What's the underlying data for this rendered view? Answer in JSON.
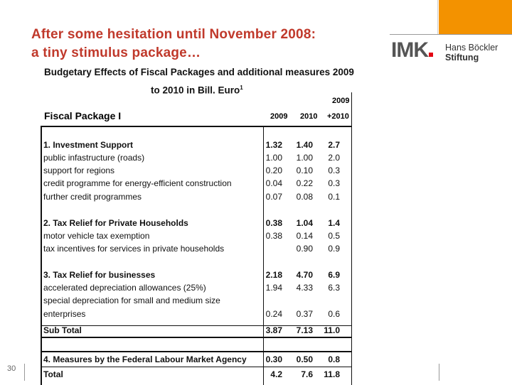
{
  "slide": {
    "title_line1": "After some hesitation until November 2008:",
    "title_line2": "a tiny stimulus package…",
    "number": "30",
    "colors": {
      "title": "#c0392b",
      "accent": "#f39200",
      "imk_red": "#e30613"
    }
  },
  "logos": {
    "imk": "IMK",
    "hbs_line1": "Hans Böckler",
    "hbs_line2": "Stiftung"
  },
  "table": {
    "heading_line1": "Budgetary Effects of Fiscal Packages and additional measures  2009",
    "heading_line2": "to 2010 in Bill. Euro",
    "heading_footnote": "1",
    "package_label": "Fiscal Package I",
    "col_headers": [
      "2009",
      "2010",
      "+2010"
    ],
    "col_header_top": "2009",
    "rows": [
      {
        "label": "1. Investment Support",
        "bold": true,
        "v": [
          "1.32",
          "1.40",
          "2.7"
        ]
      },
      {
        "label": "public infastructure (roads)",
        "bold": false,
        "v": [
          "1.00",
          "1.00",
          "2.0"
        ]
      },
      {
        "label": "support for regions",
        "bold": false,
        "v": [
          "0.20",
          "0.10",
          "0.3"
        ]
      },
      {
        "label": "credit programme for energy-efficient construction",
        "bold": false,
        "v": [
          "0.04",
          "0.22",
          "0.3"
        ]
      },
      {
        "label": "further credit programmes",
        "bold": false,
        "v": [
          "0.07",
          "0.08",
          "0.1"
        ]
      },
      {
        "label": "2. Tax Relief for Private Households",
        "bold": true,
        "v": [
          "0.38",
          "1.04",
          "1.4"
        ]
      },
      {
        "label": "motor vehicle tax exemption",
        "bold": false,
        "v": [
          "0.38",
          "0.14",
          "0.5"
        ]
      },
      {
        "label": "tax incentives for services in private households",
        "bold": false,
        "v": [
          "",
          "0.90",
          "0.9"
        ]
      },
      {
        "label": "3. Tax Relief for businesses",
        "bold": true,
        "v": [
          "2.18",
          "4.70",
          "6.9"
        ]
      },
      {
        "label": "accelerated depreciation allowances (25%)",
        "bold": false,
        "v": [
          "1.94",
          "4.33",
          "6.3"
        ]
      },
      {
        "label": "special depreciation for small and medium size",
        "bold": false,
        "v": [
          "",
          "",
          ""
        ]
      },
      {
        "label": "enterprises",
        "bold": false,
        "v": [
          "0.24",
          "0.37",
          "0.6"
        ]
      },
      {
        "label": "Sub Total",
        "bold": true,
        "v": [
          "3.87",
          "7.13",
          "11.0"
        ]
      },
      {
        "label": "4. Measures by the Federal Labour Market Agency",
        "bold": true,
        "v": [
          "0.30",
          "0.50",
          "0.8"
        ]
      },
      {
        "label": "Total",
        "bold": true,
        "v": [
          "4.2",
          "7.6",
          "11.8"
        ]
      }
    ]
  }
}
